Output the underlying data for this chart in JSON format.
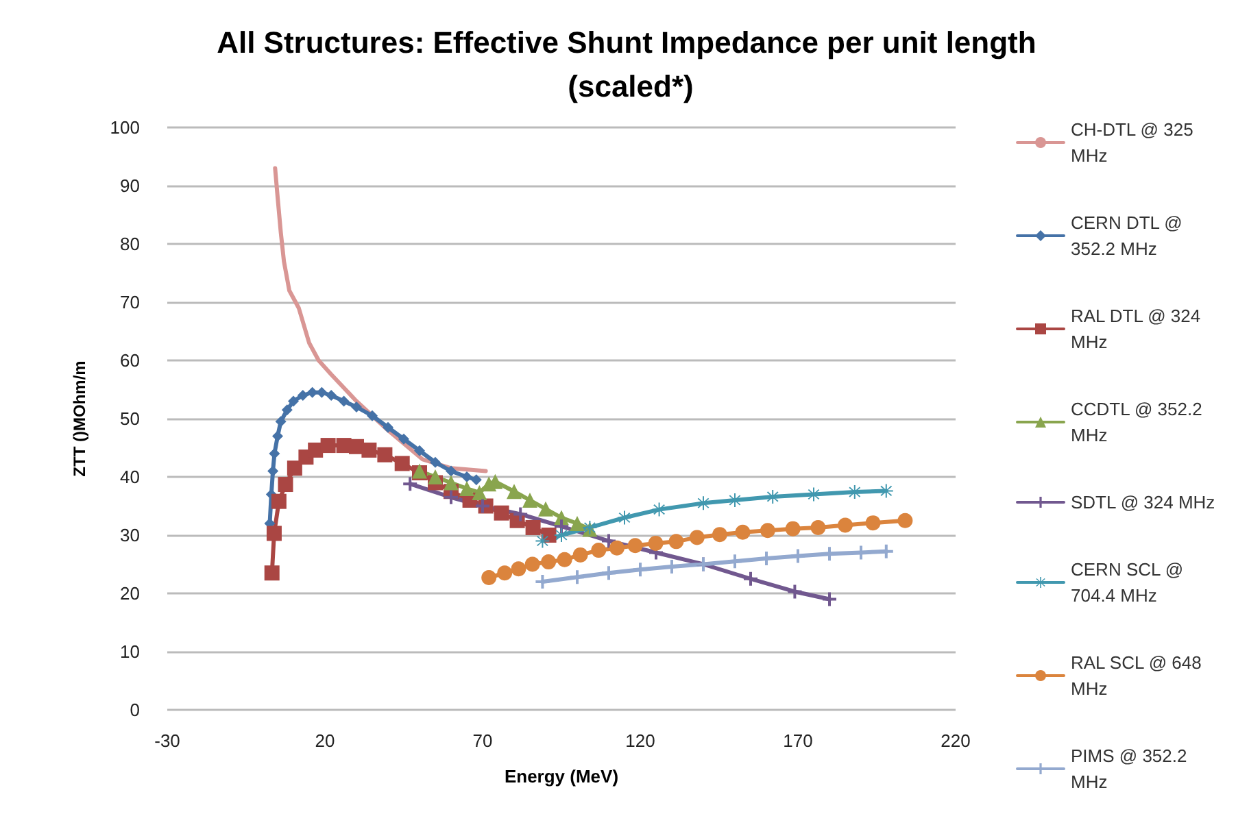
{
  "chart_data": {
    "type": "line",
    "title": "All Structures: Effective Shunt Impedance per unit length (scaled*)",
    "xlabel": "Energy (MeV)",
    "ylabel": "ZTT ()MOhm/m",
    "xlim": [
      -30,
      220
    ],
    "xticks": [
      -30,
      20,
      70,
      120,
      170,
      220
    ],
    "ylim": [
      0,
      100
    ],
    "yticks": [
      0,
      10,
      20,
      30,
      40,
      50,
      60,
      70,
      80,
      90,
      100
    ],
    "grid": "y",
    "legend": "right",
    "series": [
      {
        "name": "CH-DTL @ 325 MHz",
        "color": "#d99694",
        "marker": "none",
        "x": [
          4.2,
          5,
          6,
          7,
          8.7,
          11.7,
          15,
          18,
          22,
          30,
          40,
          51,
          60,
          71
        ],
        "values": [
          93,
          88,
          82,
          77,
          72,
          69,
          63,
          60,
          57.6,
          53,
          48,
          43,
          41.5,
          41
        ]
      },
      {
        "name": "CERN DTL @ 352.2 MHz",
        "color": "#4572a7",
        "marker": "diamond",
        "x": [
          2.5,
          3,
          3.5,
          4,
          5,
          6,
          8,
          10,
          13,
          16,
          19,
          22,
          26,
          30,
          35,
          40,
          45,
          50,
          55,
          60,
          65,
          68
        ],
        "values": [
          32,
          37,
          41,
          44,
          47,
          49.5,
          51.5,
          53,
          54,
          54.5,
          54.5,
          54,
          53,
          52,
          50.5,
          48.5,
          46.5,
          44.5,
          42.5,
          41,
          40,
          39.5
        ]
      },
      {
        "name": "RAL DTL @ 324 MHz",
        "color": "#aa4643",
        "marker": "square",
        "x": [
          3.2,
          3.9,
          5.4,
          7.5,
          10.4,
          14,
          17,
          21,
          26,
          30,
          34,
          39,
          44.5,
          50,
          55,
          60,
          66,
          71,
          76,
          81,
          86,
          91
        ],
        "values": [
          23.5,
          30.3,
          35.8,
          38.7,
          41.5,
          43.4,
          44.6,
          45.4,
          45.4,
          45.2,
          44.6,
          43.8,
          42.3,
          40.7,
          39,
          37.5,
          36,
          35,
          33.8,
          32.5,
          31.3,
          30
        ]
      },
      {
        "name": "CCDTL @ 352.2 MHz",
        "color": "#89a54e",
        "marker": "triangle",
        "x": [
          50,
          55,
          60,
          65,
          69,
          72,
          74,
          80,
          85,
          90,
          95,
          100,
          104
        ],
        "values": [
          41,
          40,
          39,
          38,
          37.3,
          38.8,
          39.2,
          37.5,
          36,
          34.5,
          33,
          32,
          31
        ]
      },
      {
        "name": "SDTL @ 324 MHz",
        "color": "#71588f",
        "marker": "cross",
        "x": [
          47,
          60,
          70,
          82,
          95,
          110,
          125,
          140,
          155,
          169,
          180
        ],
        "values": [
          38.8,
          36.5,
          35,
          33.6,
          31.5,
          29,
          27,
          25,
          22.5,
          20.3,
          19
        ]
      },
      {
        "name": "CERN SCL @ 704.4 MHz",
        "color": "#4198af",
        "marker": "star",
        "x": [
          89,
          95,
          104,
          115,
          126,
          140,
          150,
          162,
          175,
          188,
          198
        ],
        "values": [
          29,
          30,
          31.3,
          33,
          34.4,
          35.5,
          36,
          36.6,
          37,
          37.4,
          37.6
        ]
      },
      {
        "name": "RAL SCL @ 648 MHz",
        "color": "#db843d",
        "marker": "circle",
        "x": [
          72,
          77,
          81.4,
          85.8,
          90.9,
          96,
          101,
          106.8,
          112.6,
          118.4,
          124.9,
          131.4,
          138,
          145.2,
          152.5,
          160.4,
          168.4,
          176.4,
          185,
          193.8,
          204
        ],
        "values": [
          22.7,
          23.5,
          24.2,
          25,
          25.4,
          25.8,
          26.6,
          27.4,
          27.8,
          28.2,
          28.6,
          28.9,
          29.6,
          30.1,
          30.5,
          30.8,
          31.1,
          31.3,
          31.7,
          32.1,
          32.5
        ]
      },
      {
        "name": "PIMS @ 352.2 MHz",
        "color": "#93a9cf",
        "marker": "cross",
        "x": [
          89,
          100,
          110,
          120,
          130,
          140,
          150,
          160,
          170,
          180,
          190,
          198
        ],
        "values": [
          22,
          22.8,
          23.5,
          24.1,
          24.6,
          25,
          25.5,
          26,
          26.4,
          26.8,
          27,
          27.2
        ]
      }
    ]
  }
}
